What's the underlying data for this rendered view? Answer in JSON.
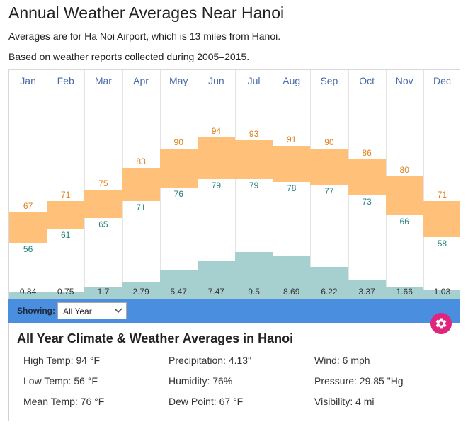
{
  "header": {
    "title": "Annual Weather Averages Near Hanoi",
    "subtitle1": "Averages are for Ha Noi Airport, which is 13 miles from Hanoi.",
    "subtitle2": "Based on weather reports collected during 2005–2015."
  },
  "chart_data": {
    "type": "bar",
    "title": "Annual Weather Averages Near Hanoi",
    "categories": [
      "Jan",
      "Feb",
      "Mar",
      "Apr",
      "May",
      "Jun",
      "Jul",
      "Aug",
      "Sep",
      "Oct",
      "Nov",
      "Dec"
    ],
    "series": [
      {
        "name": "High Temp (°F)",
        "values": [
          67,
          71,
          75,
          83,
          90,
          94,
          93,
          91,
          90,
          86,
          80,
          71
        ]
      },
      {
        "name": "Low Temp (°F)",
        "values": [
          56,
          61,
          65,
          71,
          76,
          79,
          79,
          78,
          77,
          73,
          66,
          58
        ]
      },
      {
        "name": "Precipitation (in)",
        "values": [
          "0.84",
          "0.75",
          "1.7",
          "2.79",
          "5.47",
          "7.47",
          "9.5",
          "8.69",
          "6.22",
          "3.37",
          "1.66",
          "1.03"
        ]
      }
    ],
    "temp_range": [
      40,
      110
    ],
    "precip_range": [
      0,
      14
    ]
  },
  "colors": {
    "temp_bar": "#ffc07a",
    "precip_bar": "#a6d0cf",
    "high_text": "#e07f1a",
    "low_text": "#23807b",
    "showing_bar": "#4a8ee0",
    "gear": "#e0267c"
  },
  "controls": {
    "showing_label": "Showing:",
    "period_selected": "All Year",
    "chevron_icon": "chevron-down-icon",
    "gear_icon": "gear-icon"
  },
  "summary": {
    "title": "All Year Climate & Weather Averages in Hanoi",
    "stats": [
      [
        "High Temp: 94 °F",
        "Precipitation: 4.13\"",
        "Wind: 6 mph"
      ],
      [
        "Low Temp: 56 °F",
        "Humidity: 76%",
        "Pressure: 29.85 \"Hg"
      ],
      [
        "Mean Temp: 76 °F",
        "Dew Point: 67 °F",
        "Visibility: 4 mi"
      ]
    ]
  }
}
